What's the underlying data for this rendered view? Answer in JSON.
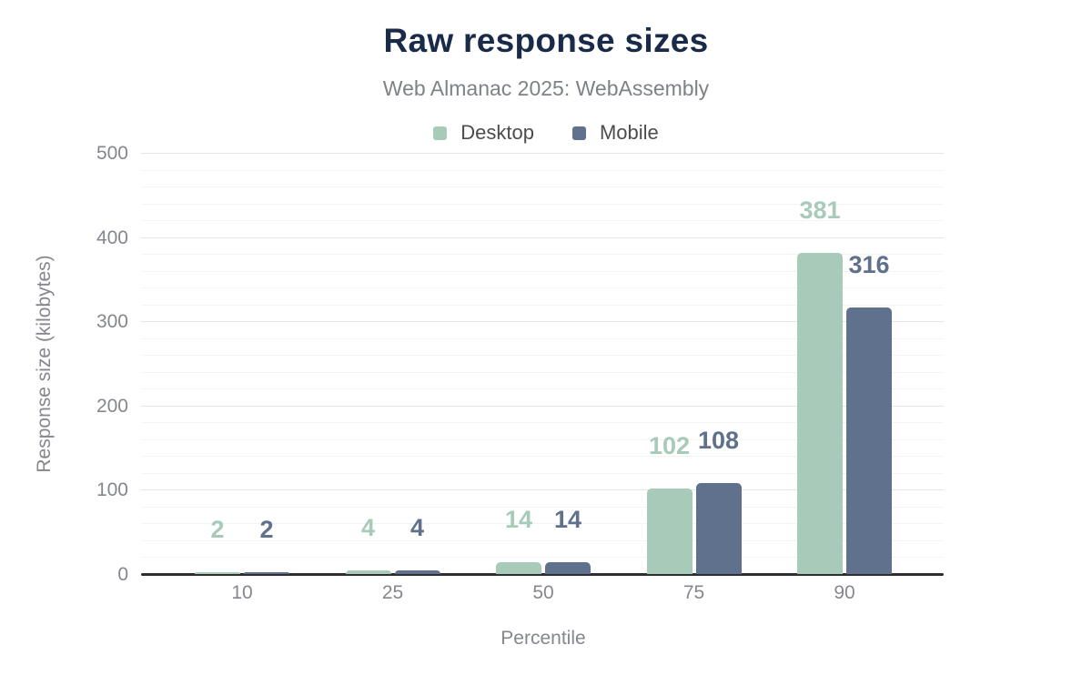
{
  "colors": {
    "title": "#1a2b49",
    "subtitle": "#7e8287",
    "tick_labels": "#85878e",
    "legend_text": "#4c4c4c",
    "axis_line": "#2f2f31",
    "grid_major": "#e5e5e8",
    "grid_minor": "#f3f3f5",
    "desktop": "#a7cab9",
    "mobile": "#5f718c"
  },
  "chart_data": {
    "type": "bar",
    "title": "Raw response sizes",
    "subtitle": "Web Almanac 2025: WebAssembly",
    "xlabel": "Percentile",
    "ylabel": "Response size (kilobytes)",
    "categories": [
      "10",
      "25",
      "50",
      "75",
      "90"
    ],
    "series": [
      {
        "name": "Desktop",
        "color": "#a7cab9",
        "values": [
          2,
          4,
          14,
          102,
          381
        ]
      },
      {
        "name": "Mobile",
        "color": "#5f718c",
        "values": [
          2,
          4,
          14,
          108,
          316
        ]
      }
    ],
    "data_labels_shown": true,
    "ylim": [
      0,
      500
    ],
    "y_major_ticks": [
      0,
      100,
      200,
      300,
      400,
      500
    ],
    "y_minor_step": 20,
    "grid": true,
    "legend_position": "top"
  },
  "legend": [
    {
      "label": "Desktop"
    },
    {
      "label": "Mobile"
    }
  ]
}
